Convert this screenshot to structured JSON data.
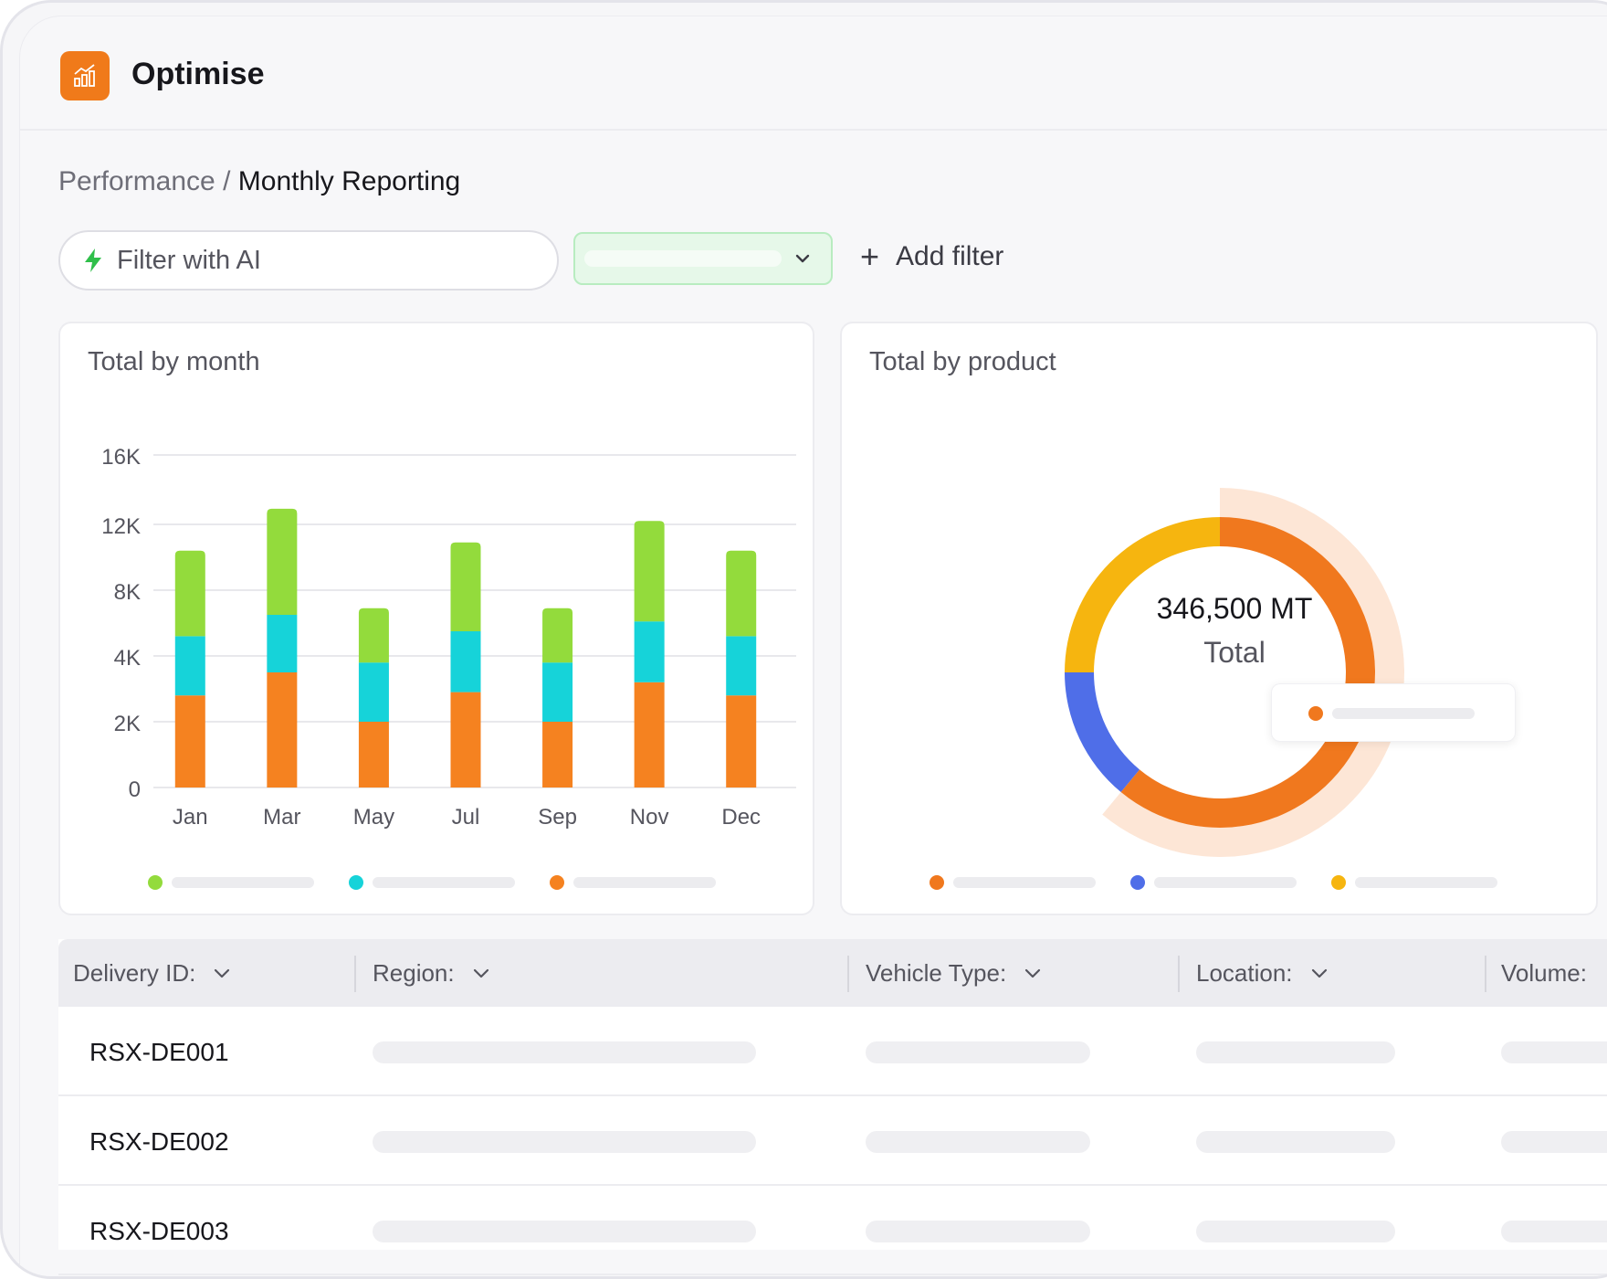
{
  "app": {
    "title": "Optimise",
    "logo_icon": "bar-chart-icon",
    "accent_color": "#f07a1a"
  },
  "breadcrumb": {
    "parent": "Performance",
    "separator": " / ",
    "current": "Monthly Reporting"
  },
  "filters": {
    "ai_filter_label": "Filter with AI",
    "ai_icon": "lightning-icon",
    "dropdown_selected": "",
    "add_filter_label": "Add filter"
  },
  "bar_card": {
    "title": "Total by month"
  },
  "donut_card": {
    "title": "Total by product",
    "center_value": "346,500 MT",
    "center_label": "Total"
  },
  "chart_data": [
    {
      "type": "bar",
      "stacked": true,
      "title": "Total by month",
      "categories": [
        "Jan",
        "Mar",
        "May",
        "Jul",
        "Sep",
        "Nov",
        "Dec"
      ],
      "y_ticks": [
        "0",
        "2K",
        "4K",
        "8K",
        "12K",
        "16K"
      ],
      "y_tick_values": [
        0,
        2000,
        4000,
        8000,
        12000,
        16000
      ],
      "grid": true,
      "legend_position": "bottom",
      "series": [
        {
          "color": "#f58220",
          "values": [
            2800,
            3500,
            2000,
            2900,
            2000,
            3200,
            2800
          ]
        },
        {
          "color": "#16d3d9",
          "values": [
            2400,
            3000,
            1800,
            2600,
            1800,
            2900,
            2400
          ]
        },
        {
          "color": "#93db3c",
          "values": [
            5200,
            6400,
            3100,
            5400,
            3100,
            6100,
            5200
          ]
        }
      ]
    },
    {
      "type": "pie",
      "donut": true,
      "title": "Total by product",
      "total_label": "346,500 MT",
      "legend_position": "bottom",
      "slices": [
        {
          "color": "#f0781e",
          "value": 0.61
        },
        {
          "color": "#4f6ee8",
          "value": 0.14
        },
        {
          "color": "#f6b50f",
          "value": 0.25
        }
      ],
      "highlight_slice": 0
    }
  ],
  "table": {
    "columns": [
      "Delivery ID:",
      "Region:",
      "Vehicle Type:",
      "Location:",
      "Volume:"
    ],
    "rows": [
      {
        "id": "RSX-DE001"
      },
      {
        "id": "RSX-DE002"
      },
      {
        "id": "RSX-DE003"
      }
    ]
  }
}
